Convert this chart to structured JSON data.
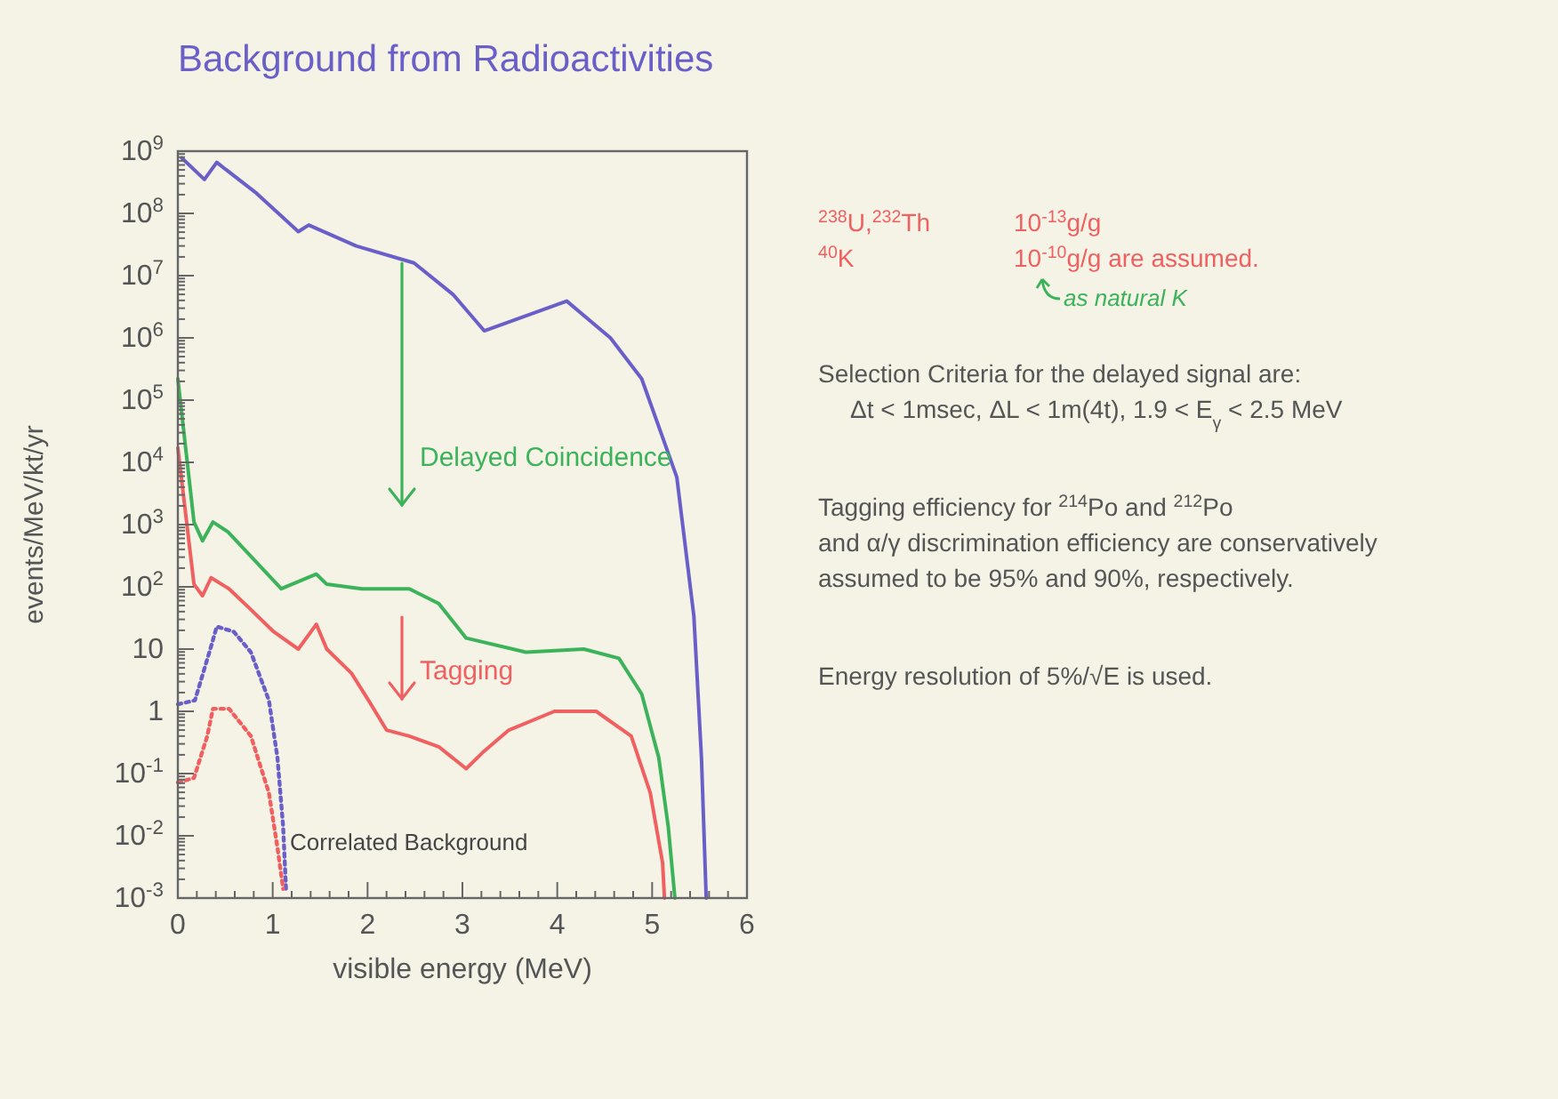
{
  "chart_data": {
    "type": "line",
    "title": "Background from Radioactivities",
    "xlabel": "visible energy (MeV)",
    "ylabel": "events/MeV/kt/yr",
    "log": "y",
    "xlim": [
      0,
      6
    ],
    "xticks": [
      0,
      1,
      2,
      3,
      4,
      5,
      6
    ],
    "ylim": [
      0.001,
      1000000000
    ],
    "yticks": [
      {
        "value": 0.001,
        "label": "10$^{-3}$"
      },
      {
        "value": 0.01,
        "label": "10$^{-2}$"
      },
      {
        "value": 0.1,
        "label": "10$^{-1}$"
      },
      1,
      10,
      {
        "value": 100,
        "label": "10$^{2}$"
      },
      {
        "value": 1000,
        "label": "10$^{3}$"
      },
      {
        "value": 10000,
        "label": "10$^{4}$"
      },
      {
        "value": 100000,
        "label": "10$^{5}$"
      },
      {
        "value": 1000000,
        "label": "10$^{6}$"
      },
      {
        "value": 10000000,
        "label": "10$^{7}$"
      },
      {
        "value": 100000000,
        "label": "10$^{8}$"
      },
      {
        "value": 1000000000,
        "label": "10$^{9}$"
      }
    ],
    "grid": false,
    "marker": "none",
    "series": [
      {
        "color": "#6a5fc8",
        "line_style": "solid",
        "x": [
          0.04,
          0.28,
          0.41,
          0.83,
          1.27,
          1.38,
          1.88,
          2.49,
          2.9,
          3.23,
          4.1,
          4.56,
          4.89,
          5.26,
          5.44,
          5.52,
          5.57
        ],
        "values": [
          780000000,
          350000000,
          660000000,
          210000000,
          51000000,
          65000000,
          30000000,
          16000000,
          5000000,
          1300000,
          3900000,
          1000000,
          220000,
          5800,
          34,
          0.18,
          0.001
        ]
      },
      {
        "color": "#3cb35a",
        "line_style": "solid",
        "x": [
          0,
          0.17,
          0.26,
          0.37,
          0.53,
          1.09,
          1.46,
          1.57,
          1.94,
          2.44,
          2.75,
          3.04,
          3.67,
          4.28,
          4.65,
          4.89,
          5.07,
          5.17,
          5.24
        ],
        "values": [
          220000,
          1100,
          550,
          1100,
          760,
          93,
          160,
          110,
          93,
          93,
          54,
          15,
          8.9,
          10,
          7.1,
          1.9,
          0.18,
          0.014,
          0.001
        ]
      },
      {
        "color": "#f06060",
        "line_style": "solid",
        "x": [
          0,
          0.17,
          0.26,
          0.35,
          0.54,
          0.77,
          1.01,
          1.27,
          1.46,
          1.57,
          1.83,
          2.01,
          2.2,
          2.44,
          2.75,
          3.04,
          3.23,
          3.49,
          3.97,
          4.41,
          4.78,
          4.98,
          5.11,
          5.13
        ],
        "values": [
          17000,
          110,
          72,
          140,
          93,
          43,
          19,
          10,
          25,
          10,
          4.1,
          1.5,
          0.5,
          0.4,
          0.27,
          0.12,
          0.23,
          0.5,
          1,
          1,
          0.4,
          0.049,
          0.0037,
          0.001
        ]
      },
      {
        "color": "#6a5fc8",
        "line_style": "dotted",
        "x": [
          0,
          0.18,
          0.35,
          0.41,
          0.59,
          0.77,
          0.96,
          1.05,
          1.11,
          1.14
        ],
        "values": [
          1.3,
          1.5,
          11,
          23,
          19,
          8.9,
          1.5,
          0.18,
          0.014,
          0.0014
        ]
      },
      {
        "color": "#f06060",
        "line_style": "dotted",
        "x": [
          0,
          0.17,
          0.31,
          0.37,
          0.54,
          0.77,
          0.96,
          1.05,
          1.11
        ],
        "values": [
          0.072,
          0.085,
          0.4,
          1.1,
          1.1,
          0.4,
          0.049,
          0.0065,
          0.0014
        ]
      }
    ],
    "annotations": [
      "Delayed Coincidence",
      "Tagging",
      "Correlated Background",
      "$^{238}$U,$^{232}$Th",
      "10$^{-13}$g/g",
      "$^{40}$K",
      "10$^{-10}$g/g are assumed.",
      "as natural K",
      "Selection Criteria for the delayed signal are:",
      "Δt < 1msec, ΔL < 1m(4t), 1.9 < E$_{γ}$ < 2.5 MeV",
      "Tagging efficiency for $^{214}$Po and $^{212}$Po",
      "and α/γ discrimination efficiency are conservatively",
      "assumed to be 95% and 90%, respectively.",
      "Energy resolution of 5%/√E is used."
    ]
  }
}
